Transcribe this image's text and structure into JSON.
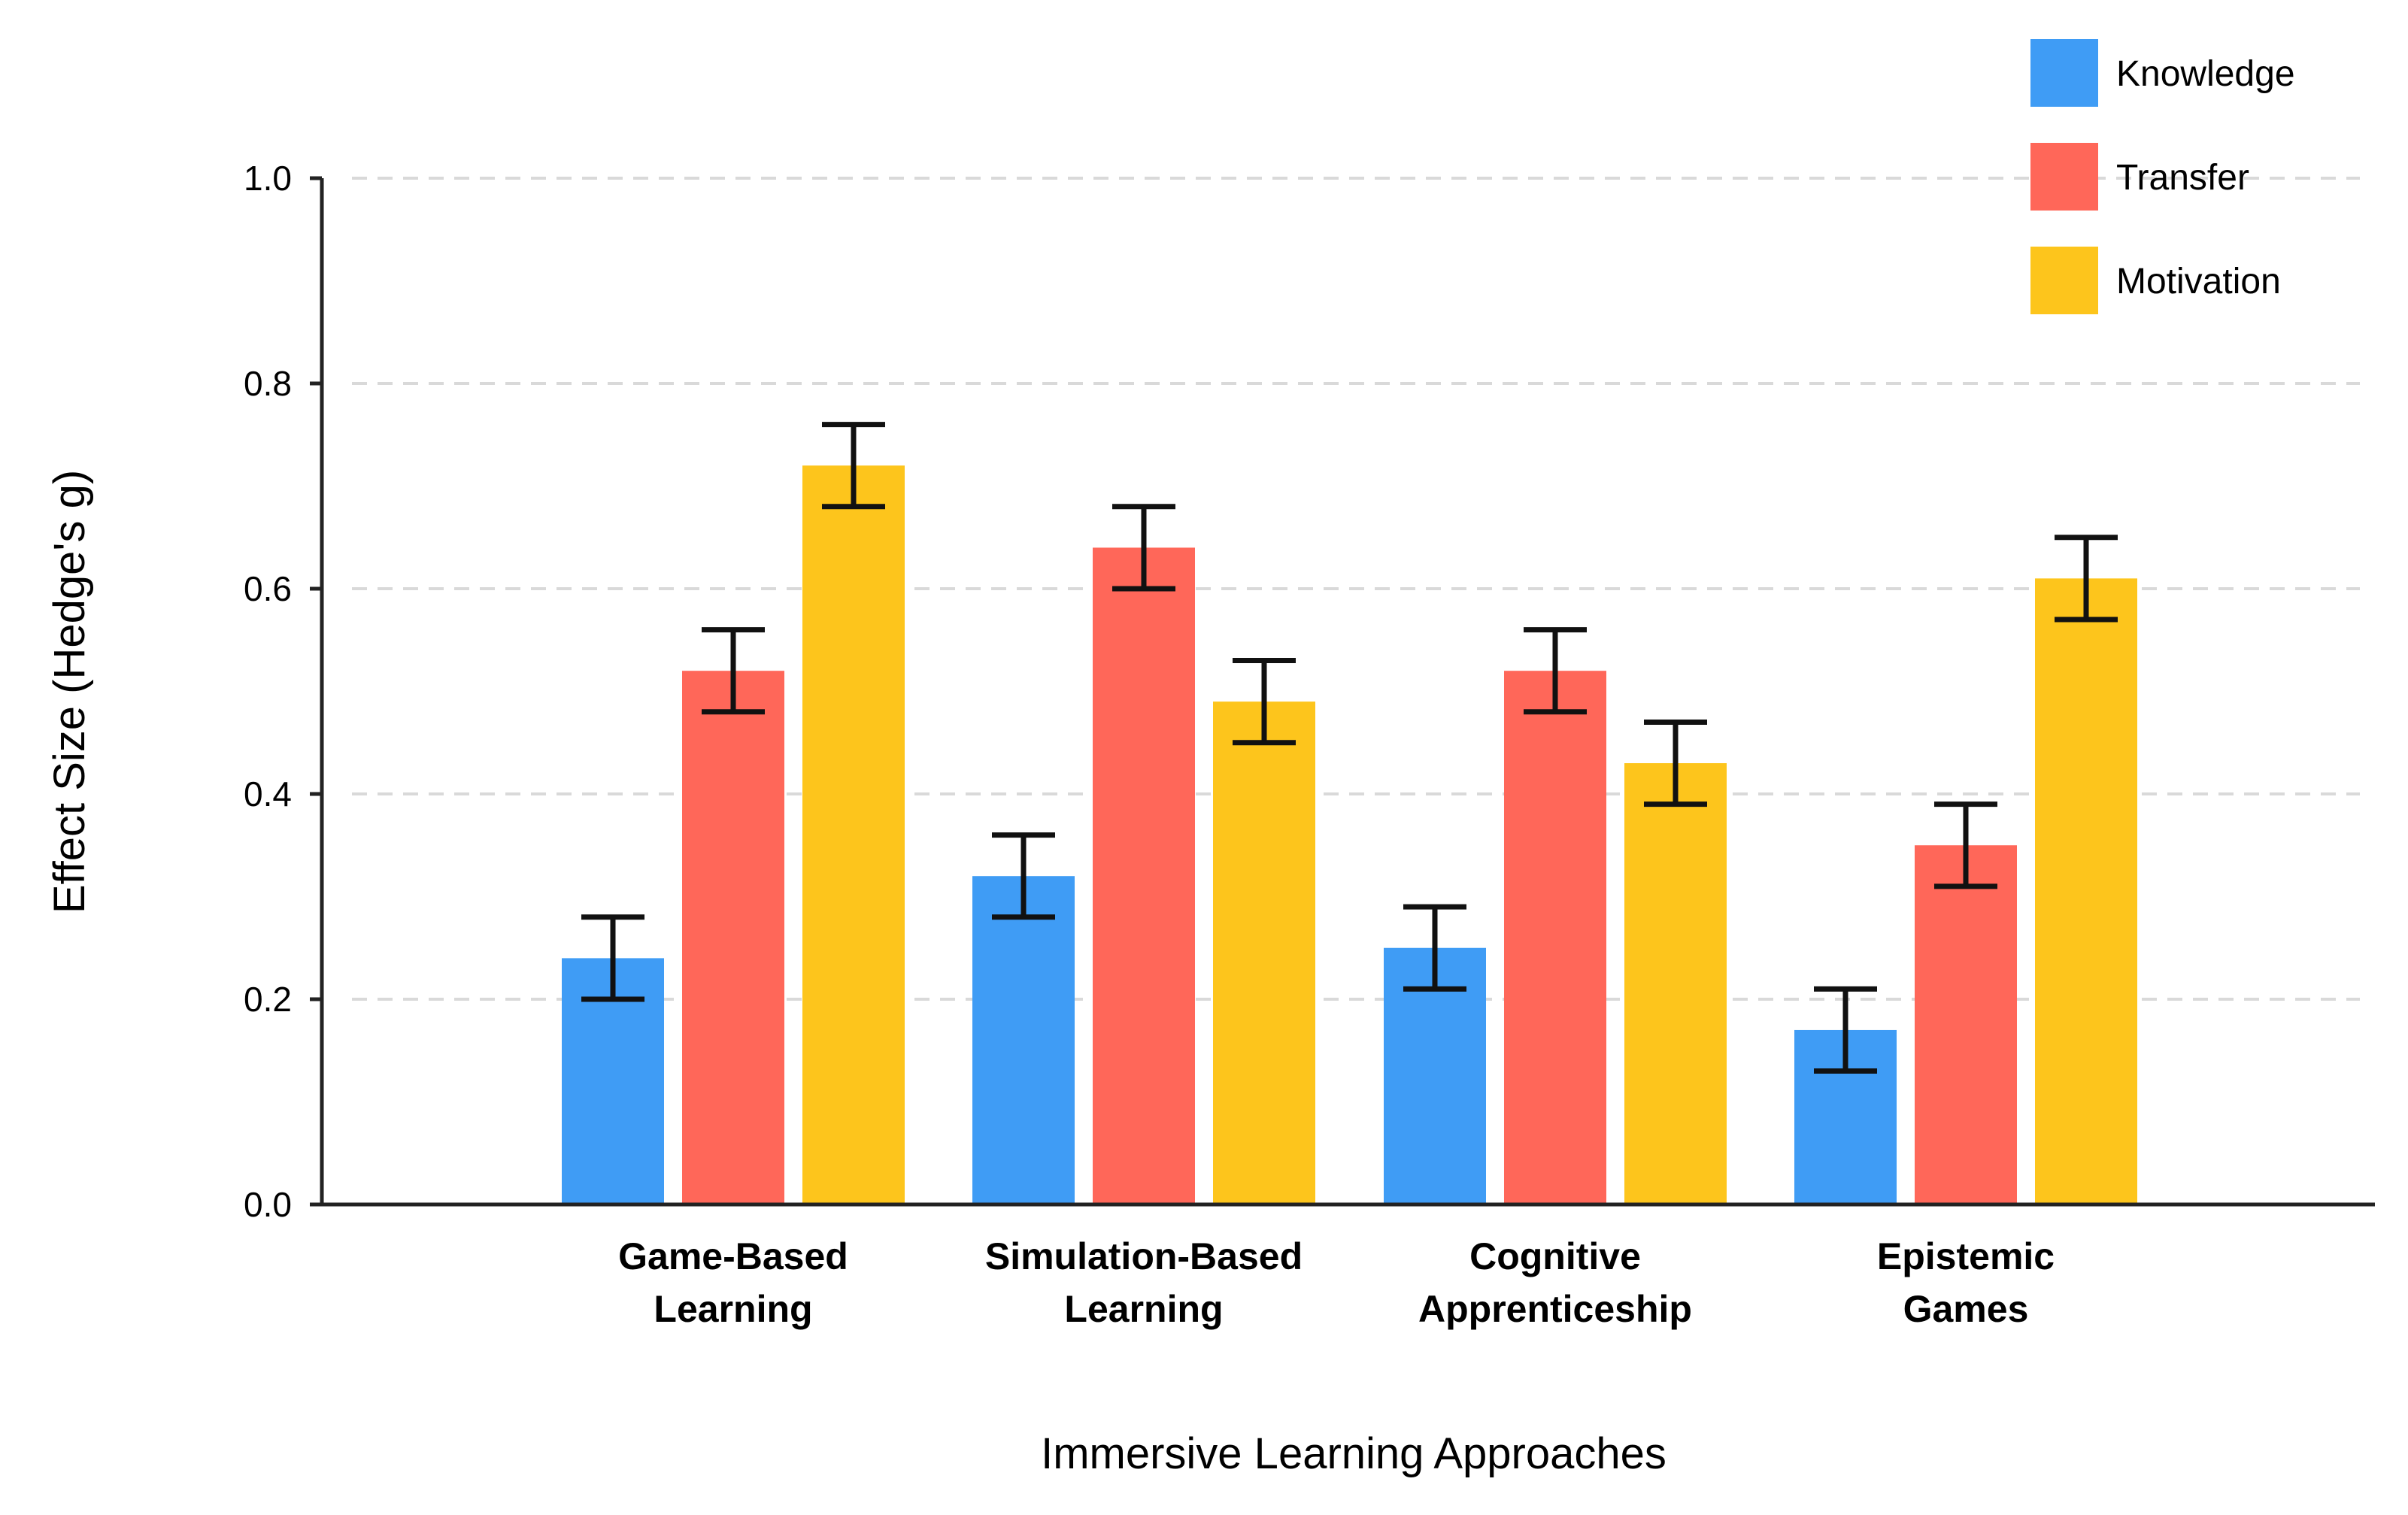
{
  "chart_data": {
    "type": "bar",
    "title": "",
    "xlabel": "Immersive Learning Approaches",
    "ylabel": "Effect Size (Hedge's g)",
    "ylim": [
      0,
      1.0
    ],
    "yticks": [
      "0.0",
      "0.2",
      "0.4",
      "0.6",
      "0.8",
      "1.0"
    ],
    "grid": true,
    "legend_position": "top-right",
    "categories": [
      [
        "Game-Based",
        "Learning"
      ],
      [
        "Simulation-Based",
        "Learning"
      ],
      [
        "Cognitive",
        "Apprenticeship"
      ],
      [
        "Epistemic",
        "Games"
      ]
    ],
    "series": [
      {
        "name": "Knowledge",
        "color": "#3f9cf5",
        "values": [
          0.24,
          0.32,
          0.25,
          0.17
        ],
        "error": [
          0.04,
          0.04,
          0.04,
          0.04
        ]
      },
      {
        "name": "Transfer",
        "color": "#ff6759",
        "values": [
          0.52,
          0.64,
          0.52,
          0.35
        ],
        "error": [
          0.04,
          0.04,
          0.04,
          0.04
        ]
      },
      {
        "name": "Motivation",
        "color": "#fdc51c",
        "values": [
          0.72,
          0.49,
          0.43,
          0.61
        ],
        "error": [
          0.04,
          0.04,
          0.04,
          0.04
        ]
      }
    ]
  }
}
